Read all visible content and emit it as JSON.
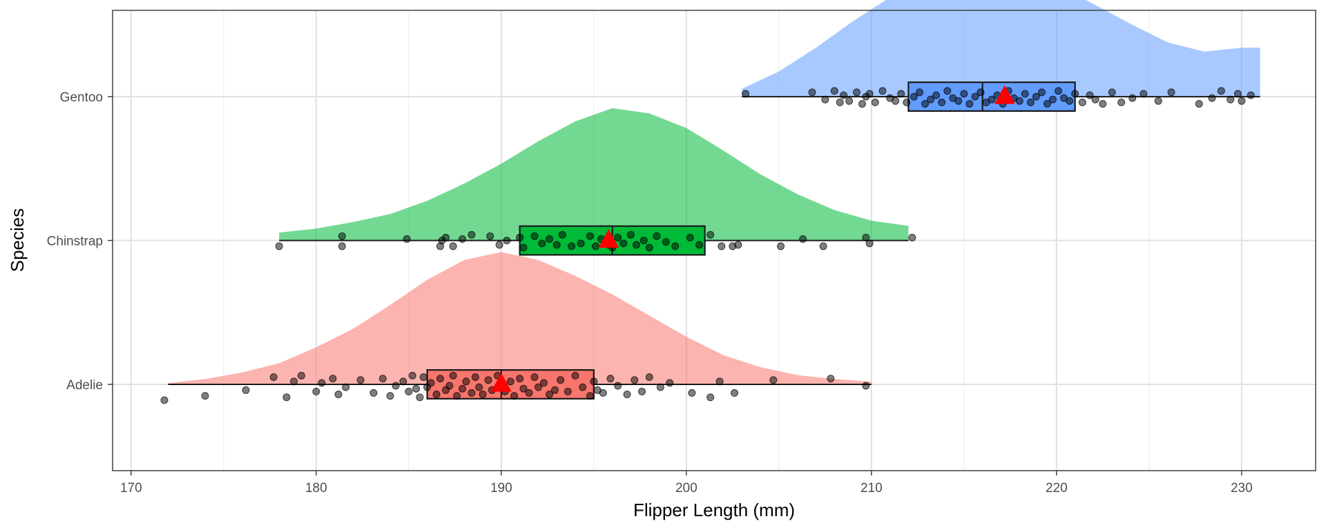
{
  "chart_data": {
    "type": "raincloud",
    "title": "",
    "xlabel": "Flipper Length (mm)",
    "ylabel": "Species",
    "xlim": [
      169,
      234
    ],
    "x_ticks": [
      170,
      180,
      190,
      200,
      210,
      220,
      230
    ],
    "grid": true,
    "legend": "none",
    "mean_marker_color": "#ff0000",
    "point_color": "#000000",
    "series": [
      {
        "name": "Adelie",
        "box_color": "#f8766d",
        "density_color": "#f8766d",
        "min": 172,
        "q1": 186,
        "median": 190,
        "q3": 195,
        "max": 210,
        "mean": 190,
        "density": [
          [
            172,
            0.01
          ],
          [
            174,
            0.04
          ],
          [
            176,
            0.09
          ],
          [
            178,
            0.16
          ],
          [
            180,
            0.28
          ],
          [
            182,
            0.42
          ],
          [
            184,
            0.6
          ],
          [
            186,
            0.79
          ],
          [
            188,
            0.94
          ],
          [
            190,
            1.0
          ],
          [
            192,
            0.94
          ],
          [
            194,
            0.82
          ],
          [
            196,
            0.68
          ],
          [
            198,
            0.52
          ],
          [
            200,
            0.36
          ],
          [
            202,
            0.22
          ],
          [
            204,
            0.13
          ],
          [
            206,
            0.07
          ],
          [
            208,
            0.04
          ],
          [
            210,
            0.02
          ]
        ],
        "points": [
          171.8,
          174.0,
          176.2,
          177.7,
          178.4,
          178.8,
          179.2,
          180.0,
          180.3,
          180.9,
          181.2,
          181.6,
          182.4,
          183.1,
          183.6,
          184.0,
          184.3,
          184.7,
          185.0,
          185.2,
          185.4,
          185.6,
          185.8,
          186.0,
          186.2,
          186.5,
          186.7,
          187.0,
          187.2,
          187.4,
          187.6,
          187.9,
          188.1,
          188.4,
          188.6,
          188.8,
          189.0,
          189.3,
          189.5,
          189.8,
          190.0,
          190.2,
          190.5,
          190.7,
          191.0,
          191.2,
          191.5,
          191.8,
          192.0,
          192.3,
          192.6,
          192.9,
          193.2,
          193.6,
          194.0,
          194.4,
          194.8,
          195.0,
          195.2,
          195.5,
          195.9,
          196.3,
          196.8,
          197.2,
          197.6,
          198.0,
          198.6,
          199.1,
          200.3,
          201.3,
          201.8,
          202.6,
          204.7,
          207.8,
          209.7
        ],
        "jitter": [
          0.11,
          0.08,
          0.04,
          -0.05,
          0.09,
          -0.02,
          -0.06,
          0.05,
          -0.01,
          -0.04,
          0.07,
          0.02,
          -0.03,
          0.06,
          -0.04,
          0.08,
          0.01,
          -0.02,
          0.05,
          -0.06,
          0.03,
          0.09,
          -0.05,
          0.02,
          -0.01,
          0.07,
          -0.04,
          0.04,
          0.01,
          -0.06,
          0.08,
          0.03,
          -0.02,
          0.06,
          -0.05,
          0.02,
          0.07,
          -0.03,
          0.04,
          -0.06,
          0.01,
          0.05,
          -0.02,
          0.08,
          -0.04,
          0.03,
          0.06,
          -0.05,
          0.02,
          -0.01,
          0.07,
          0.04,
          -0.03,
          0.05,
          -0.06,
          0.02,
          0.08,
          -0.02,
          0.04,
          0.06,
          -0.04,
          0.01,
          0.07,
          -0.03,
          0.05,
          -0.05,
          0.02,
          -0.01,
          0.06,
          0.09,
          -0.02,
          0.06,
          -0.03,
          -0.04,
          0.01
        ]
      },
      {
        "name": "Chinstrap",
        "box_color": "#00ba38",
        "density_color": "#00ba38",
        "min": 178,
        "q1": 191,
        "median": 196,
        "q3": 201,
        "max": 212,
        "mean": 195.8,
        "density": [
          [
            178,
            0.06
          ],
          [
            180,
            0.09
          ],
          [
            182,
            0.14
          ],
          [
            184,
            0.2
          ],
          [
            186,
            0.3
          ],
          [
            188,
            0.43
          ],
          [
            190,
            0.58
          ],
          [
            192,
            0.75
          ],
          [
            194,
            0.9
          ],
          [
            196,
            1.0
          ],
          [
            198,
            0.96
          ],
          [
            200,
            0.85
          ],
          [
            202,
            0.68
          ],
          [
            204,
            0.5
          ],
          [
            206,
            0.35
          ],
          [
            208,
            0.23
          ],
          [
            210,
            0.15
          ],
          [
            212,
            0.11
          ]
        ],
        "points": [
          178.0,
          181.4,
          181.4,
          184.9,
          186.7,
          186.8,
          187.0,
          187.4,
          187.9,
          188.4,
          189.4,
          189.9,
          190.3,
          191.0,
          191.2,
          191.8,
          192.2,
          192.6,
          193.0,
          193.3,
          193.8,
          194.3,
          194.8,
          195.1,
          195.4,
          195.8,
          196.0,
          196.3,
          196.6,
          197.0,
          197.3,
          197.7,
          198.0,
          198.4,
          198.9,
          199.4,
          200.2,
          200.7,
          201.3,
          201.9,
          202.5,
          202.8,
          205.1,
          206.3,
          207.4,
          209.7,
          209.9,
          212.2
        ],
        "jitter": [
          0.04,
          0.04,
          -0.03,
          -0.01,
          0.04,
          0.0,
          -0.02,
          0.04,
          -0.01,
          -0.04,
          -0.03,
          0.03,
          0.0,
          -0.02,
          0.05,
          -0.03,
          0.02,
          -0.01,
          0.03,
          -0.04,
          0.04,
          0.02,
          -0.03,
          0.04,
          -0.01,
          0.03,
          0.05,
          -0.02,
          0.02,
          -0.04,
          0.03,
          0.0,
          0.05,
          -0.03,
          0.01,
          0.04,
          -0.02,
          0.03,
          -0.04,
          0.04,
          0.04,
          0.03,
          0.04,
          -0.01,
          0.04,
          -0.02,
          0.02,
          -0.02
        ]
      },
      {
        "name": "Gentoo",
        "box_color": "#619cff",
        "density_color": "#619cff",
        "min": 203,
        "q1": 212,
        "median": 216,
        "q3": 221,
        "max": 231,
        "mean": 217.2,
        "density": [
          [
            203,
            0.06
          ],
          [
            205,
            0.19
          ],
          [
            207,
            0.37
          ],
          [
            209,
            0.57
          ],
          [
            211,
            0.75
          ],
          [
            213,
            0.88
          ],
          [
            215,
            0.98
          ],
          [
            216,
            1.0
          ],
          [
            218,
            0.95
          ],
          [
            220,
            0.84
          ],
          [
            222,
            0.7
          ],
          [
            224,
            0.55
          ],
          [
            226,
            0.41
          ],
          [
            228,
            0.34
          ],
          [
            230,
            0.37
          ],
          [
            231,
            0.37
          ]
        ],
        "points": [
          203.2,
          206.8,
          207.5,
          208.0,
          208.3,
          208.5,
          208.8,
          209.2,
          209.5,
          209.7,
          209.9,
          210.2,
          210.6,
          211.0,
          211.3,
          211.6,
          211.9,
          212.3,
          212.6,
          212.9,
          213.2,
          213.5,
          213.8,
          214.1,
          214.4,
          214.7,
          215.0,
          215.3,
          215.6,
          215.9,
          216.2,
          216.5,
          216.8,
          217.1,
          217.4,
          217.7,
          218.0,
          218.3,
          218.6,
          218.9,
          219.2,
          219.5,
          219.8,
          220.1,
          220.4,
          220.7,
          221.0,
          221.4,
          221.8,
          222.1,
          222.5,
          223.0,
          223.5,
          224.1,
          224.7,
          225.5,
          226.2,
          227.7,
          228.4,
          228.9,
          229.4,
          229.8,
          230.0,
          230.5
        ],
        "jitter": [
          -0.02,
          -0.03,
          0.02,
          -0.04,
          0.04,
          -0.01,
          0.03,
          -0.03,
          0.05,
          0.0,
          -0.02,
          0.04,
          -0.04,
          0.01,
          0.03,
          -0.02,
          0.04,
          0.0,
          -0.03,
          0.05,
          0.02,
          -0.01,
          0.04,
          -0.04,
          0.01,
          0.03,
          -0.02,
          0.05,
          0.0,
          -0.03,
          0.04,
          0.02,
          -0.01,
          0.05,
          -0.04,
          0.01,
          0.03,
          -0.02,
          0.04,
          0.0,
          -0.03,
          0.05,
          0.02,
          -0.04,
          0.01,
          0.03,
          -0.02,
          0.04,
          -0.01,
          0.02,
          0.05,
          -0.03,
          0.04,
          0.01,
          -0.02,
          0.03,
          -0.03,
          0.05,
          0.01,
          -0.04,
          0.02,
          -0.02,
          0.03,
          -0.01
        ]
      }
    ]
  }
}
